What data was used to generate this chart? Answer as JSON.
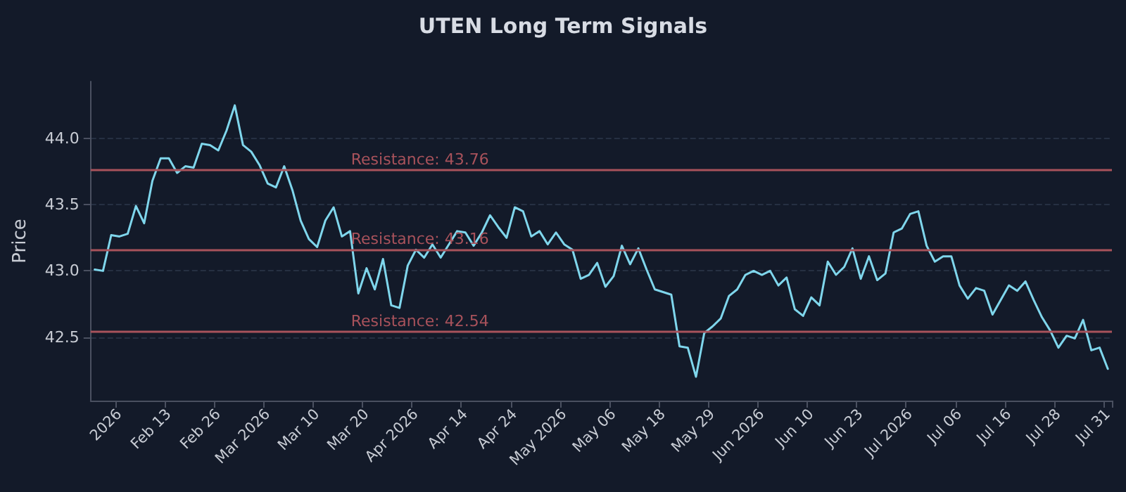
{
  "chart_data": {
    "type": "line",
    "title": "UTEN Long Term Signals",
    "ylabel": "Price",
    "categories": [
      null,
      null,
      null,
      "2026",
      null,
      null,
      null,
      null,
      null,
      "Feb 13",
      null,
      null,
      null,
      null,
      null,
      "Feb 26",
      null,
      null,
      null,
      null,
      null,
      "Mar 2026",
      null,
      null,
      null,
      null,
      null,
      "Mar 10",
      null,
      null,
      null,
      null,
      null,
      "Mar 20",
      null,
      null,
      null,
      null,
      null,
      "Apr 2026",
      null,
      null,
      null,
      null,
      null,
      "Apr 14",
      null,
      null,
      null,
      null,
      null,
      "Apr 24",
      null,
      null,
      null,
      null,
      null,
      "May 2026",
      null,
      null,
      null,
      null,
      null,
      "May 06",
      null,
      null,
      null,
      null,
      null,
      "May 18",
      null,
      null,
      null,
      null,
      null,
      "May 29",
      null,
      null,
      null,
      null,
      null,
      "Jun 2026",
      null,
      null,
      null,
      null,
      null,
      "Jun 10",
      null,
      null,
      null,
      null,
      null,
      "Jun 23",
      null,
      null,
      null,
      null,
      null,
      "Jul 2026",
      null,
      null,
      null,
      null,
      null,
      "Jul 06",
      null,
      null,
      null,
      null,
      null,
      "Jul 16",
      null,
      null,
      null,
      null,
      null,
      "Jul 28",
      null,
      null,
      null,
      null,
      null,
      "Jul 31"
    ],
    "series": [
      {
        "color": "#7fd6ec",
        "values": [
          43.01,
          43.0,
          43.27,
          43.26,
          43.28,
          43.49,
          43.36,
          43.68,
          43.85,
          43.85,
          43.74,
          43.79,
          43.78,
          43.96,
          43.95,
          43.91,
          44.06,
          44.25,
          43.95,
          43.9,
          43.8,
          43.66,
          43.63,
          43.79,
          43.61,
          43.38,
          43.24,
          43.18,
          43.38,
          43.48,
          43.26,
          43.3,
          42.83,
          43.02,
          42.86,
          43.09,
          42.74,
          42.72,
          43.04,
          43.16,
          43.1,
          43.2,
          43.1,
          43.2,
          43.3,
          43.29,
          43.19,
          43.29,
          43.42,
          43.33,
          43.25,
          43.48,
          43.45,
          43.26,
          43.3,
          43.2,
          43.29,
          43.2,
          43.16,
          42.94,
          42.97,
          43.06,
          42.88,
          42.96,
          43.19,
          43.05,
          43.17,
          43.01,
          42.86,
          42.84,
          42.82,
          42.43,
          42.42,
          42.2,
          42.53,
          42.58,
          42.64,
          42.81,
          42.86,
          42.97,
          43.0,
          42.97,
          43.0,
          42.89,
          42.95,
          42.71,
          42.66,
          42.8,
          42.74,
          43.07,
          42.97,
          43.03,
          43.17,
          42.94,
          43.11,
          42.93,
          42.98,
          43.29,
          43.32,
          43.43,
          43.45,
          43.19,
          43.07,
          43.11,
          43.11,
          42.89,
          42.79,
          42.87,
          42.85,
          42.67,
          42.78,
          42.89,
          42.85,
          42.92,
          42.78,
          42.65,
          42.55,
          42.42,
          42.51,
          42.49,
          42.63,
          42.4,
          42.42,
          42.26
        ]
      }
    ],
    "ylim": [
      42.02,
      44.43
    ],
    "yticks": [
      {
        "value": 42.5,
        "label": "42.5"
      },
      {
        "value": 43.0,
        "label": "43.0"
      },
      {
        "value": 43.5,
        "label": "43.5"
      },
      {
        "value": 44.0,
        "label": "44.0"
      }
    ],
    "grid": "y",
    "marker": "none",
    "line_style": "solid",
    "ref_lines": [
      {
        "axis": "y",
        "value": 43.76,
        "label": "Resistance: 43.76",
        "color": "#a8525b"
      },
      {
        "axis": "y",
        "value": 43.16,
        "label": "Resistance: 43.16",
        "color": "#a8525b"
      },
      {
        "axis": "y",
        "value": 42.54,
        "label": "Resistance: 42.54",
        "color": "#a8525b"
      }
    ]
  }
}
